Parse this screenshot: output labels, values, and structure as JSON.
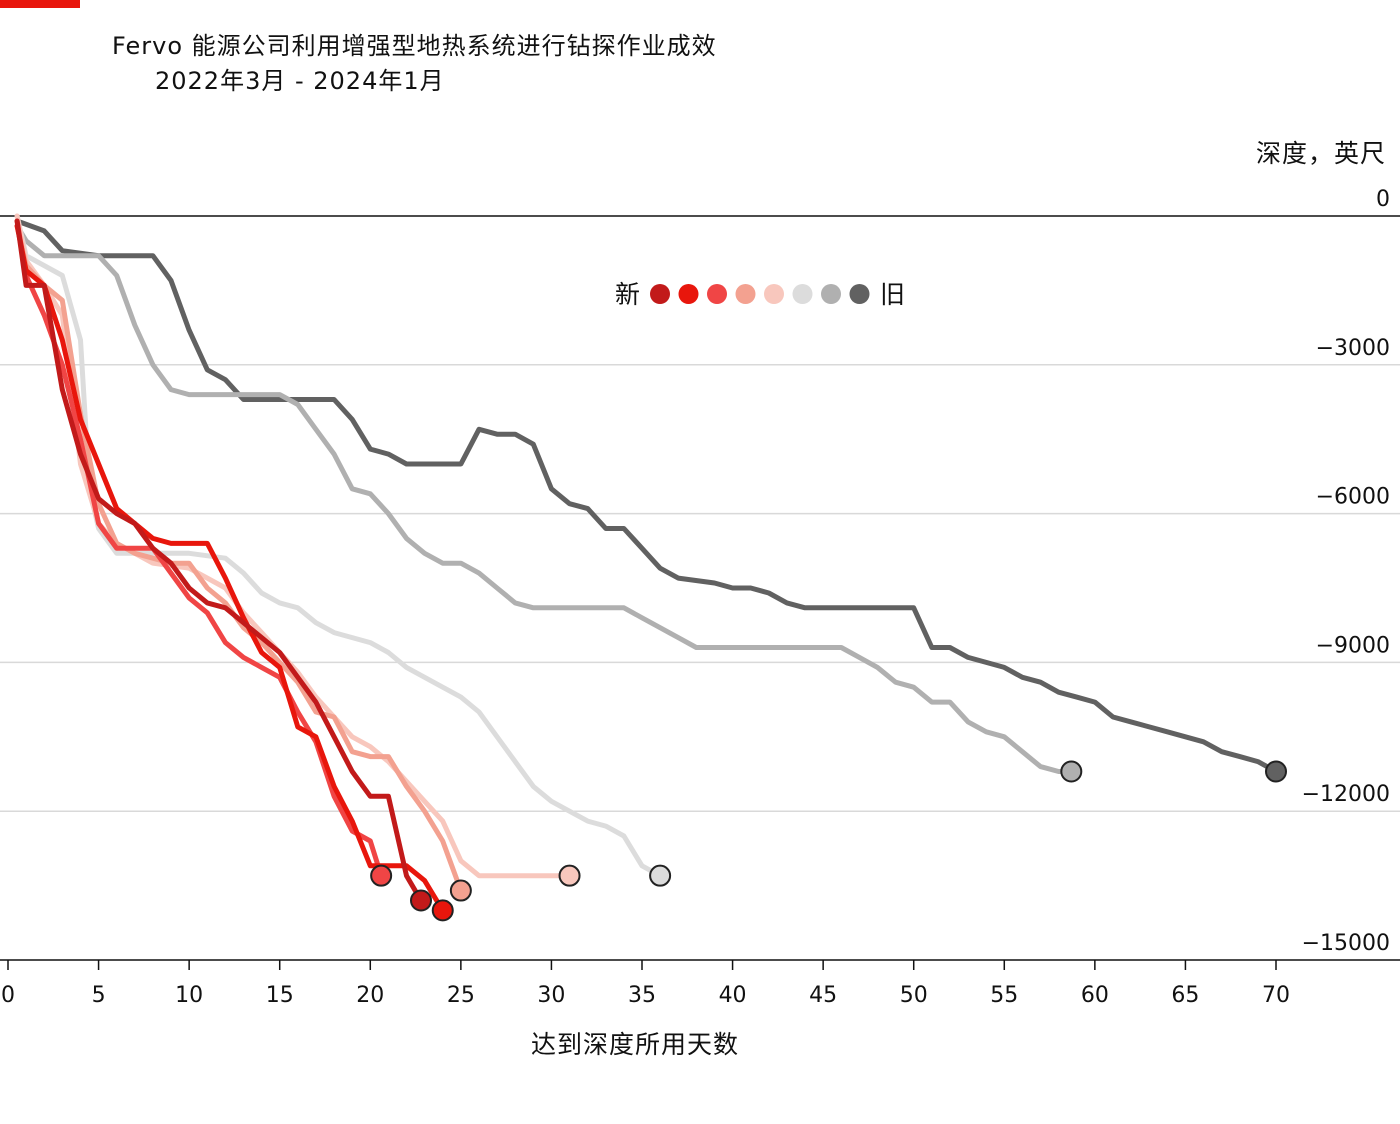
{
  "header": {
    "title": "Fervo 能源公司利用增强型地热系统进行钻探作业成效",
    "subtitle": "2022年3月 - 2024年1月",
    "accent_color": "#e8160c"
  },
  "chart_data": {
    "type": "line",
    "title": "Fervo 能源公司利用增强型地热系统进行钻探作业成效",
    "subtitle": "2022年3月 - 2024年1月",
    "xlabel": "达到深度所用天数",
    "ylabel": "深度，英尺",
    "xlim": [
      0,
      70
    ],
    "ylim": [
      -15000,
      0
    ],
    "x_ticks": [
      "0",
      "5",
      "10",
      "15",
      "20",
      "25",
      "30",
      "35",
      "40",
      "45",
      "50",
      "55",
      "60",
      "65",
      "70"
    ],
    "y_ticks": [
      "0",
      "−3000",
      "−6000",
      "−9000",
      "−12000",
      "−15000"
    ],
    "grid": "horizontal",
    "legend": {
      "placement": "top-center",
      "new_label": "新",
      "old_label": "旧"
    },
    "series": [
      {
        "color": "#616161",
        "points": [
          [
            0.5,
            -100
          ],
          [
            2,
            -300
          ],
          [
            3,
            -700
          ],
          [
            5,
            -800
          ],
          [
            8,
            -800
          ],
          [
            9,
            -1300
          ],
          [
            10,
            -2300
          ],
          [
            11,
            -3100
          ],
          [
            12,
            -3300
          ],
          [
            13,
            -3700
          ],
          [
            16,
            -3700
          ],
          [
            18,
            -3700
          ],
          [
            19,
            -4100
          ],
          [
            20,
            -4700
          ],
          [
            21,
            -4800
          ],
          [
            22,
            -5000
          ],
          [
            25,
            -5000
          ],
          [
            26,
            -4300
          ],
          [
            27,
            -4400
          ],
          [
            28,
            -4400
          ],
          [
            29,
            -4600
          ],
          [
            30,
            -5500
          ],
          [
            31,
            -5800
          ],
          [
            32,
            -5900
          ],
          [
            33,
            -6300
          ],
          [
            34,
            -6300
          ],
          [
            35,
            -6700
          ],
          [
            36,
            -7100
          ],
          [
            37,
            -7300
          ],
          [
            39,
            -7400
          ],
          [
            40,
            -7500
          ],
          [
            41,
            -7500
          ],
          [
            42,
            -7600
          ],
          [
            43,
            -7800
          ],
          [
            44,
            -7900
          ],
          [
            50,
            -7900
          ],
          [
            51,
            -8700
          ],
          [
            52,
            -8700
          ],
          [
            53,
            -8900
          ],
          [
            54,
            -9000
          ],
          [
            55,
            -9100
          ],
          [
            56,
            -9300
          ],
          [
            57,
            -9400
          ],
          [
            58,
            -9600
          ],
          [
            59,
            -9700
          ],
          [
            60,
            -9800
          ],
          [
            61,
            -10100
          ],
          [
            62,
            -10200
          ],
          [
            63,
            -10300
          ],
          [
            64,
            -10400
          ],
          [
            65,
            -10500
          ],
          [
            66,
            -10600
          ],
          [
            67,
            -10800
          ],
          [
            68,
            -10900
          ],
          [
            69,
            -11000
          ],
          [
            70,
            -11200
          ]
        ]
      },
      {
        "color": "#b0b0b0",
        "points": [
          [
            0.5,
            -200
          ],
          [
            1,
            -500
          ],
          [
            2,
            -800
          ],
          [
            5,
            -800
          ],
          [
            6,
            -1200
          ],
          [
            7,
            -2200
          ],
          [
            8,
            -3000
          ],
          [
            9,
            -3500
          ],
          [
            10,
            -3600
          ],
          [
            15,
            -3600
          ],
          [
            16,
            -3800
          ],
          [
            17,
            -4300
          ],
          [
            18,
            -4800
          ],
          [
            19,
            -5500
          ],
          [
            20,
            -5600
          ],
          [
            21,
            -6000
          ],
          [
            22,
            -6500
          ],
          [
            23,
            -6800
          ],
          [
            24,
            -7000
          ],
          [
            25,
            -7000
          ],
          [
            26,
            -7200
          ],
          [
            27,
            -7500
          ],
          [
            28,
            -7800
          ],
          [
            29,
            -7900
          ],
          [
            34,
            -7900
          ],
          [
            35,
            -8100
          ],
          [
            36,
            -8300
          ],
          [
            37,
            -8500
          ],
          [
            38,
            -8700
          ],
          [
            39,
            -8700
          ],
          [
            46,
            -8700
          ],
          [
            47,
            -8900
          ],
          [
            48,
            -9100
          ],
          [
            49,
            -9400
          ],
          [
            50,
            -9500
          ],
          [
            51,
            -9800
          ],
          [
            52,
            -9800
          ],
          [
            53,
            -10200
          ],
          [
            54,
            -10400
          ],
          [
            55,
            -10500
          ],
          [
            56,
            -10800
          ],
          [
            57,
            -11100
          ],
          [
            58,
            -11200
          ],
          [
            58.7,
            -11200
          ]
        ]
      },
      {
        "color": "#dcdcdc",
        "points": [
          [
            0.5,
            0
          ],
          [
            1,
            -800
          ],
          [
            3,
            -1200
          ],
          [
            4,
            -2500
          ],
          [
            4.5,
            -5500
          ],
          [
            5,
            -6300
          ],
          [
            6,
            -6800
          ],
          [
            10,
            -6800
          ],
          [
            12,
            -6900
          ],
          [
            13,
            -7200
          ],
          [
            14,
            -7600
          ],
          [
            15,
            -7800
          ],
          [
            16,
            -7900
          ],
          [
            17,
            -8200
          ],
          [
            18,
            -8400
          ],
          [
            19,
            -8500
          ],
          [
            20,
            -8600
          ],
          [
            21,
            -8800
          ],
          [
            22,
            -9100
          ],
          [
            23,
            -9300
          ],
          [
            24,
            -9500
          ],
          [
            25,
            -9700
          ],
          [
            26,
            -10000
          ],
          [
            27,
            -10500
          ],
          [
            28,
            -11000
          ],
          [
            29,
            -11500
          ],
          [
            30,
            -11800
          ],
          [
            31,
            -12000
          ],
          [
            32,
            -12200
          ],
          [
            33,
            -12300
          ],
          [
            34,
            -12500
          ],
          [
            35,
            -13100
          ],
          [
            36,
            -13300
          ]
        ]
      },
      {
        "color": "#f8c7bd",
        "points": [
          [
            0.5,
            0
          ],
          [
            1,
            -900
          ],
          [
            2,
            -1400
          ],
          [
            3,
            -2000
          ],
          [
            4,
            -5000
          ],
          [
            5,
            -6200
          ],
          [
            6,
            -6600
          ],
          [
            7,
            -6800
          ],
          [
            8,
            -7000
          ],
          [
            10,
            -7100
          ],
          [
            12,
            -7500
          ],
          [
            13,
            -8000
          ],
          [
            14,
            -8400
          ],
          [
            15,
            -8800
          ],
          [
            16,
            -9200
          ],
          [
            17,
            -9700
          ],
          [
            18,
            -10100
          ],
          [
            19,
            -10500
          ],
          [
            20,
            -10700
          ],
          [
            21,
            -11000
          ],
          [
            22,
            -11400
          ],
          [
            23,
            -11800
          ],
          [
            24,
            -12200
          ],
          [
            25,
            -13000
          ],
          [
            26,
            -13300
          ],
          [
            31,
            -13300
          ]
        ]
      },
      {
        "color": "#f3a190",
        "points": [
          [
            0.5,
            -200
          ],
          [
            1,
            -1000
          ],
          [
            2,
            -1400
          ],
          [
            3,
            -1700
          ],
          [
            4,
            -4000
          ],
          [
            5,
            -5800
          ],
          [
            6,
            -6600
          ],
          [
            7,
            -6800
          ],
          [
            8,
            -6900
          ],
          [
            9,
            -7000
          ],
          [
            10,
            -7000
          ],
          [
            11,
            -7500
          ],
          [
            12,
            -7800
          ],
          [
            13,
            -8300
          ],
          [
            14,
            -8600
          ],
          [
            15,
            -9000
          ],
          [
            16,
            -9400
          ],
          [
            17,
            -10000
          ],
          [
            18,
            -10100
          ],
          [
            19,
            -10800
          ],
          [
            20,
            -10900
          ],
          [
            21,
            -10900
          ],
          [
            22,
            -11500
          ],
          [
            23,
            -12000
          ],
          [
            24,
            -12600
          ],
          [
            25,
            -13600
          ]
        ]
      },
      {
        "color": "#f04545",
        "points": [
          [
            0.5,
            -100
          ],
          [
            1,
            -1200
          ],
          [
            2,
            -2000
          ],
          [
            3,
            -3000
          ],
          [
            4,
            -4500
          ],
          [
            5,
            -6200
          ],
          [
            6,
            -6700
          ],
          [
            8,
            -6700
          ],
          [
            9,
            -7200
          ],
          [
            10,
            -7700
          ],
          [
            11,
            -8000
          ],
          [
            12,
            -8600
          ],
          [
            13,
            -8900
          ],
          [
            14,
            -9100
          ],
          [
            15,
            -9300
          ],
          [
            16,
            -10000
          ],
          [
            17,
            -10600
          ],
          [
            18,
            -11700
          ],
          [
            19,
            -12400
          ],
          [
            20,
            -12600
          ],
          [
            20.6,
            -13300
          ]
        ]
      },
      {
        "color": "#e8160c",
        "points": [
          [
            0.5,
            -200
          ],
          [
            1,
            -1100
          ],
          [
            2,
            -1400
          ],
          [
            3,
            -2500
          ],
          [
            4,
            -4100
          ],
          [
            5,
            -5000
          ],
          [
            6,
            -5900
          ],
          [
            7,
            -6200
          ],
          [
            8,
            -6500
          ],
          [
            9,
            -6600
          ],
          [
            11,
            -6600
          ],
          [
            12,
            -7300
          ],
          [
            13,
            -8100
          ],
          [
            14,
            -8800
          ],
          [
            15,
            -9100
          ],
          [
            16,
            -10300
          ],
          [
            17,
            -10500
          ],
          [
            18,
            -11500
          ],
          [
            19,
            -12200
          ],
          [
            20,
            -13100
          ],
          [
            21,
            -13100
          ],
          [
            22,
            -13100
          ],
          [
            23,
            -13400
          ],
          [
            24,
            -14000
          ]
        ]
      },
      {
        "color": "#c21a1a",
        "points": [
          [
            0.5,
            -100
          ],
          [
            1,
            -1400
          ],
          [
            2,
            -1400
          ],
          [
            3,
            -3500
          ],
          [
            4,
            -4800
          ],
          [
            5,
            -5700
          ],
          [
            6,
            -6000
          ],
          [
            7,
            -6200
          ],
          [
            8,
            -6700
          ],
          [
            9,
            -7000
          ],
          [
            10,
            -7500
          ],
          [
            11,
            -7800
          ],
          [
            12,
            -7900
          ],
          [
            13,
            -8200
          ],
          [
            14,
            -8500
          ],
          [
            15,
            -8800
          ],
          [
            16,
            -9300
          ],
          [
            17,
            -9800
          ],
          [
            18,
            -10500
          ],
          [
            19,
            -11200
          ],
          [
            20,
            -11700
          ],
          [
            21,
            -11700
          ],
          [
            22,
            -13300
          ],
          [
            22.8,
            -13800
          ]
        ]
      }
    ]
  }
}
